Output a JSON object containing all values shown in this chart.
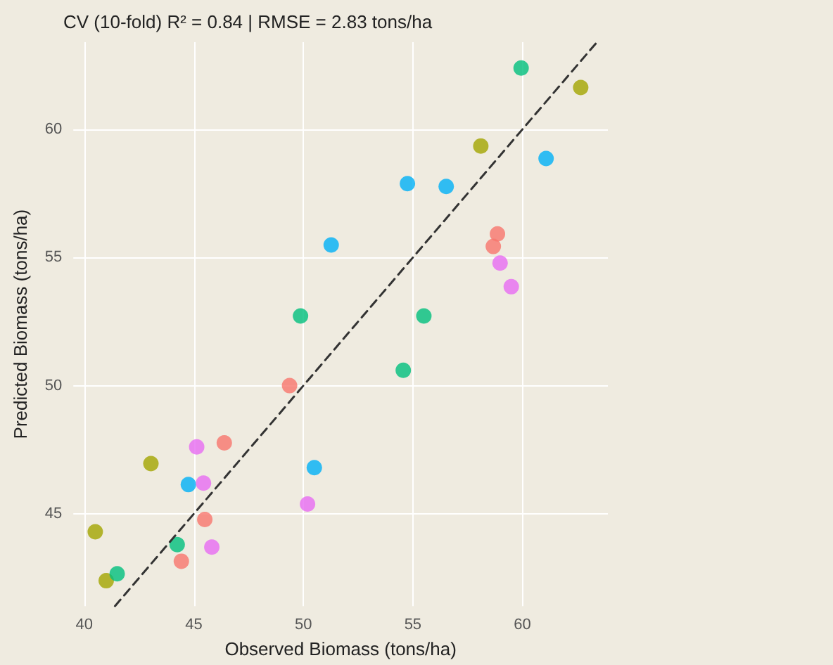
{
  "chart_data": {
    "type": "scatter",
    "title": "CV (10-fold) R² = 0.84 | RMSE = 2.83 tons/ha",
    "xlabel": "Observed Biomass (tons/ha)",
    "ylabel": "Predicted Biomass (tons/ha)",
    "xlim": [
      39.5,
      63.9
    ],
    "ylim": [
      41.4,
      63.4
    ],
    "xticks": [
      40,
      45,
      50,
      55,
      60
    ],
    "yticks": [
      45,
      50,
      55,
      60
    ],
    "grid": true,
    "marker": "circle",
    "series": [
      {
        "color": "#f8766d",
        "x": [
          58.86,
          58.67,
          49.37,
          46.39,
          45.5,
          44.43
        ],
        "values": [
          55.92,
          55.43,
          50.0,
          47.77,
          44.78,
          43.15
        ]
      },
      {
        "color": "#a3a500",
        "x": [
          62.66,
          58.1,
          43.04,
          40.5,
          41.0
        ],
        "values": [
          61.63,
          59.35,
          46.96,
          44.3,
          42.39
        ]
      },
      {
        "color": "#00bf7d",
        "x": [
          59.94,
          49.87,
          55.5,
          54.56,
          44.24,
          41.5
        ],
        "values": [
          62.39,
          52.72,
          52.72,
          50.6,
          43.8,
          42.66
        ]
      },
      {
        "color": "#00b0f6",
        "x": [
          61.08,
          54.75,
          56.52,
          51.27,
          50.5,
          44.75
        ],
        "values": [
          58.86,
          57.88,
          57.77,
          55.49,
          46.8,
          46.14
        ]
      },
      {
        "color": "#e76bf3",
        "x": [
          58.98,
          59.49,
          45.13,
          45.44,
          45.82,
          50.19
        ],
        "values": [
          54.78,
          53.86,
          47.61,
          46.2,
          43.7,
          45.38
        ]
      },
      {
        "type": "line",
        "color": "#333333",
        "line_style": "dashed",
        "marker": "none",
        "x": [
          41.4,
          63.4
        ],
        "values": [
          41.4,
          63.4
        ]
      }
    ]
  }
}
